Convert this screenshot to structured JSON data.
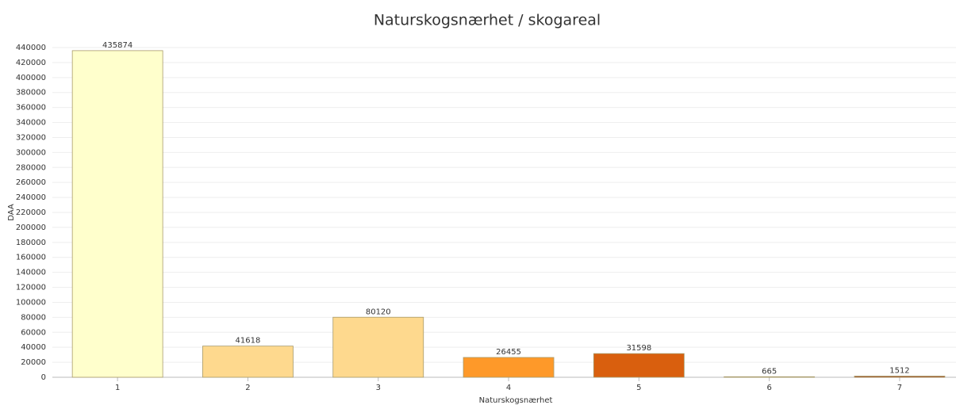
{
  "chart_data": {
    "type": "bar",
    "title": "Naturskogsnærhet / skogareal",
    "x_label": "Naturskogsnærhet",
    "y_label": "DAA",
    "categories": [
      "1",
      "2",
      "3",
      "4",
      "5",
      "6",
      "7"
    ],
    "values": [
      435874,
      41618,
      80120,
      26455,
      31598,
      665,
      1512
    ],
    "colors": [
      "#ffffcc",
      "#fed98e",
      "#fed98e",
      "#fe9929",
      "#d95f0e",
      "#993404",
      "#993404"
    ],
    "ylim": [
      0,
      440000
    ],
    "yticks": [
      0,
      20000,
      40000,
      60000,
      80000,
      100000,
      120000,
      140000,
      160000,
      180000,
      200000,
      220000,
      240000,
      260000,
      280000,
      300000,
      320000,
      340000,
      360000,
      380000,
      400000,
      420000,
      440000
    ],
    "grid": true
  }
}
